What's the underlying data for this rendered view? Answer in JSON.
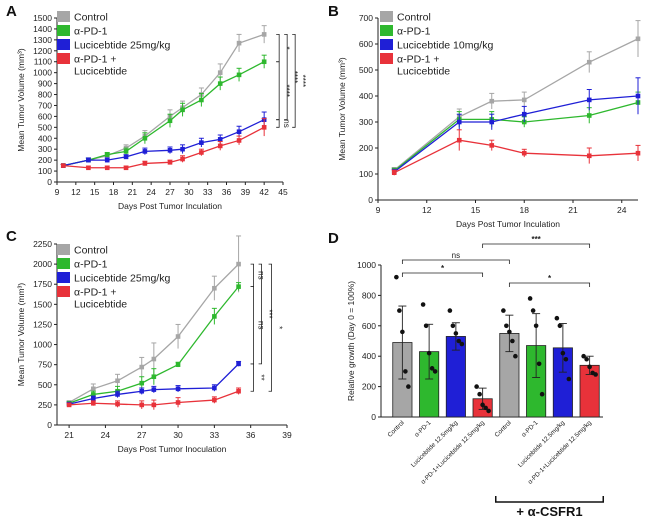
{
  "colors": {
    "Control": "#a6a6a6",
    "aPD1": "#2eb82e",
    "Lucicebtide": "#1f1fd6",
    "Combo": "#e8323a",
    "axis": "#222222"
  },
  "chart_data": [
    {
      "panel": "A",
      "type": "line",
      "xlabel": "Days Post Tumor Inculation",
      "ylabel": "Mean Tumor Volume (mm³)",
      "xlim": [
        9,
        45
      ],
      "ylim": [
        0,
        1500
      ],
      "xticks": [
        9,
        12,
        15,
        18,
        21,
        24,
        27,
        30,
        33,
        36,
        39,
        42,
        45
      ],
      "yticks": [
        0,
        100,
        200,
        300,
        400,
        500,
        600,
        700,
        800,
        900,
        1000,
        1100,
        1200,
        1300,
        1400,
        1500
      ],
      "x": [
        10,
        14,
        17,
        20,
        23,
        27,
        29,
        32,
        35,
        38,
        42
      ],
      "series": [
        {
          "name": "Control",
          "color_key": "Control",
          "values": [
            150,
            200,
            240,
            310,
            420,
            600,
            680,
            800,
            1000,
            1270,
            1350
          ],
          "errors": [
            10,
            20,
            20,
            30,
            50,
            60,
            60,
            60,
            80,
            80,
            80
          ]
        },
        {
          "name": "α-PD-1",
          "color_key": "aPD1",
          "values": [
            150,
            200,
            250,
            280,
            400,
            560,
            660,
            750,
            900,
            980,
            1100
          ],
          "errors": [
            10,
            20,
            20,
            30,
            50,
            60,
            60,
            60,
            60,
            60,
            60
          ]
        },
        {
          "name": "Lucicebtide 25mg/kg",
          "color_key": "Lucicebtide",
          "values": [
            150,
            200,
            200,
            230,
            280,
            290,
            300,
            360,
            390,
            460,
            570
          ],
          "errors": [
            10,
            20,
            20,
            20,
            30,
            30,
            40,
            40,
            40,
            50,
            70
          ]
        },
        {
          "name": "α-PD-1 + Lucicebtide",
          "color_key": "Combo",
          "values": [
            150,
            130,
            130,
            130,
            170,
            180,
            210,
            270,
            330,
            380,
            500
          ],
          "errors": [
            10,
            15,
            15,
            15,
            20,
            20,
            30,
            30,
            40,
            40,
            80
          ]
        }
      ],
      "significance": [
        "*",
        "****",
        "****",
        "****",
        "ns"
      ]
    },
    {
      "panel": "B",
      "type": "line",
      "xlabel": "Days Post Tumor Inculation",
      "ylabel": "Mean Tumor Volume (mm³)",
      "xlim": [
        9,
        25
      ],
      "ylim": [
        0,
        700
      ],
      "xticks": [
        9,
        12,
        15,
        18,
        21,
        24
      ],
      "yticks": [
        0,
        100,
        200,
        300,
        400,
        500,
        600,
        700
      ],
      "x": [
        10,
        14,
        16,
        18,
        22,
        25
      ],
      "series": [
        {
          "name": "Control",
          "color_key": "Control",
          "values": [
            115,
            320,
            380,
            385,
            530,
            620
          ],
          "errors": [
            10,
            30,
            30,
            30,
            40,
            70
          ]
        },
        {
          "name": "α-PD-1",
          "color_key": "aPD1",
          "values": [
            112,
            310,
            310,
            300,
            325,
            375
          ],
          "errors": [
            10,
            30,
            30,
            20,
            30,
            40
          ]
        },
        {
          "name": "Lucicebtide 10mg/kg",
          "color_key": "Lucicebtide",
          "values": [
            108,
            300,
            300,
            330,
            385,
            400
          ],
          "errors": [
            10,
            30,
            30,
            30,
            40,
            70
          ]
        },
        {
          "name": "α-PD-1 + Lucicebtide",
          "color_key": "Combo",
          "values": [
            105,
            230,
            210,
            180,
            170,
            180
          ],
          "errors": [
            10,
            40,
            20,
            15,
            30,
            30
          ]
        }
      ],
      "significance": [
        "**",
        "**",
        "****",
        "*",
        "*"
      ]
    },
    {
      "panel": "C",
      "type": "line",
      "xlabel": "Days Post Tumor Inoculation",
      "ylabel": "Mean Tumor Volume (mm³)",
      "xlim": [
        20,
        39
      ],
      "ylim": [
        0,
        2250
      ],
      "xticks": [
        21,
        24,
        27,
        30,
        33,
        36,
        39
      ],
      "yticks": [
        0,
        250,
        500,
        750,
        1000,
        1250,
        1500,
        1750,
        2000,
        2250
      ],
      "x": [
        21,
        23,
        25,
        27,
        28,
        30,
        33,
        35
      ],
      "series": [
        {
          "name": "Control",
          "color_key": "Control",
          "values": [
            280,
            450,
            550,
            720,
            820,
            1100,
            1700,
            2000
          ],
          "errors": [
            20,
            60,
            80,
            120,
            200,
            150,
            150,
            350
          ]
        },
        {
          "name": "α-PD-1",
          "color_key": "aPD1",
          "values": [
            270,
            380,
            420,
            520,
            600,
            750,
            1350,
            1720
          ],
          "errors": [
            20,
            40,
            60,
            80,
            100,
            30,
            100,
            50
          ]
        },
        {
          "name": "Lucicebtide 25mg/kg",
          "color_key": "Lucicebtide",
          "values": [
            260,
            330,
            380,
            420,
            440,
            450,
            460,
            760
          ],
          "errors": [
            20,
            30,
            40,
            40,
            40,
            40,
            40,
            30
          ]
        },
        {
          "name": "α-PD-1 + Lucicebtide",
          "color_key": "Combo",
          "values": [
            250,
            270,
            260,
            250,
            250,
            280,
            310,
            420
          ],
          "errors": [
            20,
            30,
            40,
            50,
            60,
            60,
            40,
            40
          ]
        }
      ],
      "significance": [
        "ns",
        "ns",
        "***",
        "*",
        "**"
      ]
    },
    {
      "panel": "D",
      "type": "bar",
      "ylabel": "Relative growth (Day 0 = 100%)",
      "ylim": [
        0,
        1000
      ],
      "yticks": [
        0,
        200,
        400,
        600,
        800,
        1000
      ],
      "categories": [
        "Control",
        "α-PD-1",
        "Lucicebtide 12.5mg/kg",
        "α-PD-1+Lucicebtide 12.5mg/kg",
        "Control",
        "α-PD-1",
        "Lucicebtide 12.5mg/kg",
        "α-PD-1+Lucicebtide 12.5mg/kg"
      ],
      "color_keys": [
        "Control",
        "aPD1",
        "Lucicebtide",
        "Combo",
        "Control",
        "aPD1",
        "Lucicebtide",
        "Combo"
      ],
      "values": [
        490,
        430,
        530,
        120,
        550,
        470,
        455,
        340
      ],
      "errors": [
        240,
        180,
        90,
        70,
        120,
        210,
        160,
        60
      ],
      "points": [
        [
          920,
          700,
          560,
          300,
          200
        ],
        [
          740,
          600,
          420,
          320,
          300
        ],
        [
          700,
          600,
          550,
          500,
          480
        ],
        [
          200,
          150,
          80,
          60,
          40
        ],
        [
          700,
          600,
          560,
          500,
          400
        ],
        [
          780,
          700,
          600,
          350,
          150
        ],
        [
          650,
          600,
          420,
          380,
          250
        ],
        [
          400,
          380,
          330,
          290,
          280
        ]
      ],
      "group_label": "+ α-CSFR1",
      "significance": [
        {
          "from": 0,
          "to": 4,
          "label": "ns"
        },
        {
          "from": 0,
          "to": 3,
          "label": "*"
        },
        {
          "from": 3,
          "to": 7,
          "label": "***"
        },
        {
          "from": 4,
          "to": 7,
          "label": "*"
        }
      ]
    }
  ]
}
